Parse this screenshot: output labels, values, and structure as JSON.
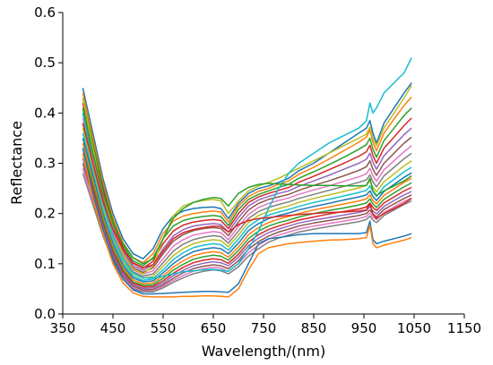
{
  "chart_data": {
    "type": "line",
    "xlabel": "Wavelength/(nm)",
    "ylabel": "Reflectance",
    "xlim": [
      350,
      1150
    ],
    "ylim": [
      0.0,
      0.6
    ],
    "x_ticks": [
      350,
      450,
      550,
      650,
      750,
      850,
      950,
      1050,
      1150
    ],
    "x_tick_labels": [
      "350",
      "450",
      "550",
      "650",
      "750",
      "850",
      "950",
      "1050",
      "1150"
    ],
    "y_ticks": [
      0.0,
      0.1,
      0.2,
      0.3,
      0.4,
      0.5,
      0.6
    ],
    "y_tick_labels": [
      "0.0",
      "0.1",
      "0.2",
      "0.3",
      "0.4",
      "0.5",
      "0.6"
    ],
    "grid": false,
    "legend": "none",
    "x": [
      390,
      410,
      430,
      450,
      470,
      490,
      510,
      530,
      550,
      570,
      590,
      610,
      630,
      650,
      665,
      680,
      700,
      720,
      740,
      760,
      780,
      800,
      820,
      850,
      880,
      910,
      940,
      955,
      962,
      968,
      975,
      990,
      1010,
      1030,
      1045
    ],
    "series_colors": [
      "#1f77b4",
      "#ff7f0e",
      "#2ca02c",
      "#d62728",
      "#9467bd",
      "#8c564b",
      "#e377c2",
      "#7f7f7f",
      "#bcbd22",
      "#17becf"
    ],
    "series": [
      {
        "values": [
          0.45,
          0.36,
          0.27,
          0.2,
          0.15,
          0.12,
          0.11,
          0.13,
          0.17,
          0.195,
          0.205,
          0.21,
          0.212,
          0.213,
          0.21,
          0.19,
          0.22,
          0.24,
          0.25,
          0.255,
          0.262,
          0.27,
          0.285,
          0.3,
          0.32,
          0.34,
          0.36,
          0.37,
          0.385,
          0.36,
          0.34,
          0.38,
          0.41,
          0.44,
          0.46
        ]
      },
      {
        "values": [
          0.44,
          0.35,
          0.262,
          0.192,
          0.142,
          0.112,
          0.102,
          0.12,
          0.16,
          0.185,
          0.195,
          0.2,
          0.203,
          0.205,
          0.203,
          0.183,
          0.215,
          0.234,
          0.244,
          0.25,
          0.258,
          0.265,
          0.278,
          0.292,
          0.308,
          0.325,
          0.342,
          0.352,
          0.366,
          0.342,
          0.325,
          0.36,
          0.388,
          0.415,
          0.432
        ]
      },
      {
        "values": [
          0.43,
          0.34,
          0.255,
          0.185,
          0.136,
          0.106,
          0.096,
          0.112,
          0.15,
          0.175,
          0.186,
          0.191,
          0.194,
          0.196,
          0.194,
          0.176,
          0.208,
          0.228,
          0.238,
          0.245,
          0.252,
          0.258,
          0.27,
          0.283,
          0.297,
          0.312,
          0.328,
          0.337,
          0.35,
          0.328,
          0.312,
          0.345,
          0.37,
          0.395,
          0.41
        ]
      },
      {
        "values": [
          0.42,
          0.33,
          0.248,
          0.18,
          0.131,
          0.101,
          0.091,
          0.105,
          0.14,
          0.165,
          0.177,
          0.183,
          0.186,
          0.188,
          0.186,
          0.17,
          0.2,
          0.222,
          0.233,
          0.24,
          0.246,
          0.252,
          0.262,
          0.274,
          0.287,
          0.3,
          0.314,
          0.323,
          0.336,
          0.315,
          0.3,
          0.33,
          0.352,
          0.375,
          0.39
        ]
      },
      {
        "values": [
          0.41,
          0.322,
          0.24,
          0.174,
          0.126,
          0.096,
          0.087,
          0.098,
          0.13,
          0.155,
          0.168,
          0.175,
          0.178,
          0.18,
          0.178,
          0.163,
          0.192,
          0.215,
          0.227,
          0.234,
          0.24,
          0.245,
          0.254,
          0.265,
          0.276,
          0.288,
          0.3,
          0.308,
          0.32,
          0.302,
          0.288,
          0.315,
          0.336,
          0.357,
          0.37
        ]
      },
      {
        "values": [
          0.4,
          0.314,
          0.233,
          0.168,
          0.121,
          0.092,
          0.083,
          0.092,
          0.12,
          0.145,
          0.158,
          0.166,
          0.17,
          0.172,
          0.17,
          0.156,
          0.183,
          0.207,
          0.22,
          0.228,
          0.233,
          0.238,
          0.246,
          0.256,
          0.265,
          0.275,
          0.286,
          0.293,
          0.305,
          0.288,
          0.276,
          0.3,
          0.32,
          0.34,
          0.352
        ]
      },
      {
        "values": [
          0.39,
          0.306,
          0.226,
          0.162,
          0.116,
          0.088,
          0.079,
          0.086,
          0.11,
          0.135,
          0.148,
          0.157,
          0.161,
          0.164,
          0.162,
          0.148,
          0.174,
          0.198,
          0.212,
          0.22,
          0.226,
          0.231,
          0.238,
          0.247,
          0.255,
          0.264,
          0.273,
          0.279,
          0.29,
          0.275,
          0.264,
          0.287,
          0.305,
          0.323,
          0.335
        ]
      },
      {
        "values": [
          0.38,
          0.298,
          0.219,
          0.156,
          0.111,
          0.084,
          0.075,
          0.08,
          0.102,
          0.125,
          0.139,
          0.148,
          0.153,
          0.156,
          0.154,
          0.141,
          0.165,
          0.19,
          0.204,
          0.212,
          0.218,
          0.223,
          0.23,
          0.238,
          0.246,
          0.254,
          0.262,
          0.267,
          0.277,
          0.263,
          0.253,
          0.275,
          0.292,
          0.309,
          0.32
        ]
      },
      {
        "values": [
          0.37,
          0.29,
          0.212,
          0.15,
          0.106,
          0.08,
          0.071,
          0.075,
          0.095,
          0.116,
          0.13,
          0.14,
          0.145,
          0.148,
          0.146,
          0.134,
          0.157,
          0.182,
          0.196,
          0.204,
          0.21,
          0.215,
          0.222,
          0.23,
          0.237,
          0.244,
          0.251,
          0.256,
          0.265,
          0.252,
          0.243,
          0.263,
          0.279,
          0.295,
          0.305
        ]
      },
      {
        "values": [
          0.36,
          0.282,
          0.205,
          0.144,
          0.101,
          0.076,
          0.067,
          0.07,
          0.088,
          0.108,
          0.122,
          0.132,
          0.137,
          0.14,
          0.138,
          0.127,
          0.149,
          0.174,
          0.188,
          0.197,
          0.203,
          0.208,
          0.214,
          0.222,
          0.228,
          0.235,
          0.242,
          0.246,
          0.255,
          0.243,
          0.234,
          0.253,
          0.268,
          0.283,
          0.292
        ]
      },
      {
        "values": [
          0.35,
          0.274,
          0.198,
          0.138,
          0.096,
          0.072,
          0.064,
          0.066,
          0.082,
          0.1,
          0.114,
          0.124,
          0.129,
          0.132,
          0.13,
          0.12,
          0.141,
          0.166,
          0.18,
          0.19,
          0.196,
          0.201,
          0.207,
          0.214,
          0.22,
          0.227,
          0.233,
          0.237,
          0.245,
          0.234,
          0.226,
          0.244,
          0.258,
          0.272,
          0.281
        ]
      },
      {
        "values": [
          0.34,
          0.266,
          0.192,
          0.133,
          0.092,
          0.068,
          0.06,
          0.062,
          0.076,
          0.093,
          0.106,
          0.116,
          0.121,
          0.124,
          0.122,
          0.113,
          0.133,
          0.158,
          0.172,
          0.182,
          0.189,
          0.194,
          0.2,
          0.207,
          0.213,
          0.219,
          0.225,
          0.229,
          0.237,
          0.226,
          0.219,
          0.236,
          0.249,
          0.262,
          0.27
        ]
      },
      {
        "values": [
          0.33,
          0.258,
          0.186,
          0.128,
          0.088,
          0.064,
          0.057,
          0.058,
          0.071,
          0.087,
          0.099,
          0.109,
          0.114,
          0.117,
          0.115,
          0.107,
          0.126,
          0.15,
          0.165,
          0.175,
          0.182,
          0.187,
          0.193,
          0.2,
          0.206,
          0.211,
          0.217,
          0.221,
          0.229,
          0.219,
          0.212,
          0.228,
          0.241,
          0.253,
          0.261
        ]
      },
      {
        "values": [
          0.32,
          0.25,
          0.18,
          0.123,
          0.084,
          0.061,
          0.054,
          0.055,
          0.066,
          0.081,
          0.093,
          0.102,
          0.107,
          0.11,
          0.108,
          0.101,
          0.119,
          0.143,
          0.158,
          0.168,
          0.175,
          0.181,
          0.187,
          0.193,
          0.199,
          0.204,
          0.209,
          0.213,
          0.221,
          0.212,
          0.206,
          0.221,
          0.233,
          0.245,
          0.252
        ]
      },
      {
        "values": [
          0.31,
          0.242,
          0.174,
          0.118,
          0.08,
          0.058,
          0.051,
          0.052,
          0.062,
          0.076,
          0.087,
          0.096,
          0.101,
          0.104,
          0.102,
          0.096,
          0.113,
          0.136,
          0.151,
          0.162,
          0.169,
          0.175,
          0.181,
          0.187,
          0.192,
          0.197,
          0.202,
          0.206,
          0.214,
          0.205,
          0.199,
          0.214,
          0.226,
          0.237,
          0.244
        ]
      },
      {
        "values": [
          0.3,
          0.234,
          0.168,
          0.113,
          0.076,
          0.055,
          0.048,
          0.049,
          0.058,
          0.071,
          0.082,
          0.09,
          0.095,
          0.098,
          0.096,
          0.09,
          0.106,
          0.129,
          0.144,
          0.155,
          0.163,
          0.169,
          0.175,
          0.181,
          0.186,
          0.191,
          0.196,
          0.2,
          0.207,
          0.199,
          0.193,
          0.208,
          0.219,
          0.23,
          0.237
        ]
      },
      {
        "values": [
          0.29,
          0.226,
          0.162,
          0.108,
          0.072,
          0.052,
          0.046,
          0.046,
          0.055,
          0.067,
          0.077,
          0.085,
          0.09,
          0.093,
          0.091,
          0.085,
          0.1,
          0.122,
          0.137,
          0.149,
          0.157,
          0.163,
          0.169,
          0.175,
          0.18,
          0.185,
          0.19,
          0.194,
          0.201,
          0.193,
          0.188,
          0.202,
          0.213,
          0.224,
          0.231
        ]
      },
      {
        "values": [
          0.28,
          0.218,
          0.156,
          0.104,
          0.069,
          0.05,
          0.044,
          0.044,
          0.052,
          0.063,
          0.072,
          0.08,
          0.085,
          0.088,
          0.086,
          0.08,
          0.094,
          0.115,
          0.13,
          0.143,
          0.151,
          0.157,
          0.163,
          0.169,
          0.174,
          0.179,
          0.184,
          0.188,
          0.195,
          0.187,
          0.182,
          0.196,
          0.207,
          0.218,
          0.225
        ]
      },
      {
        "values": [
          0.43,
          0.33,
          0.24,
          0.17,
          0.12,
          0.09,
          0.08,
          0.095,
          0.15,
          0.195,
          0.215,
          0.222,
          0.226,
          0.228,
          0.225,
          0.2,
          0.225,
          0.245,
          0.255,
          0.262,
          0.27,
          0.28,
          0.29,
          0.305,
          0.32,
          0.335,
          0.35,
          0.358,
          0.372,
          0.35,
          0.335,
          0.37,
          0.4,
          0.43,
          0.455
        ]
      },
      {
        "values": [
          0.4,
          0.3,
          0.22,
          0.155,
          0.11,
          0.082,
          0.072,
          0.072,
          0.075,
          0.08,
          0.084,
          0.086,
          0.088,
          0.089,
          0.087,
          0.085,
          0.1,
          0.13,
          0.165,
          0.21,
          0.25,
          0.28,
          0.3,
          0.32,
          0.34,
          0.355,
          0.37,
          0.385,
          0.42,
          0.4,
          0.41,
          0.44,
          0.46,
          0.48,
          0.51
        ]
      },
      {
        "values": [
          0.33,
          0.24,
          0.17,
          0.11,
          0.07,
          0.048,
          0.04,
          0.04,
          0.041,
          0.042,
          0.043,
          0.044,
          0.045,
          0.045,
          0.044,
          0.043,
          0.06,
          0.1,
          0.14,
          0.15,
          0.152,
          0.155,
          0.158,
          0.16,
          0.16,
          0.16,
          0.16,
          0.162,
          0.185,
          0.148,
          0.14,
          0.145,
          0.15,
          0.155,
          0.16
        ]
      },
      {
        "values": [
          0.32,
          0.23,
          0.16,
          0.1,
          0.062,
          0.042,
          0.035,
          0.034,
          0.034,
          0.034,
          0.035,
          0.035,
          0.036,
          0.036,
          0.035,
          0.034,
          0.05,
          0.088,
          0.12,
          0.132,
          0.136,
          0.14,
          0.142,
          0.145,
          0.147,
          0.148,
          0.15,
          0.152,
          0.176,
          0.14,
          0.132,
          0.137,
          0.142,
          0.147,
          0.152
        ]
      },
      {
        "values": [
          0.41,
          0.32,
          0.24,
          0.18,
          0.14,
          0.112,
          0.1,
          0.11,
          0.15,
          0.19,
          0.21,
          0.222,
          0.228,
          0.232,
          0.23,
          0.215,
          0.24,
          0.252,
          0.258,
          0.26,
          0.259,
          0.258,
          0.257,
          0.256,
          0.256,
          0.255,
          0.255,
          0.256,
          0.27,
          0.245,
          0.236,
          0.245,
          0.255,
          0.265,
          0.275
        ]
      },
      {
        "values": [
          0.38,
          0.3,
          0.225,
          0.168,
          0.128,
          0.102,
          0.092,
          0.098,
          0.125,
          0.15,
          0.162,
          0.168,
          0.172,
          0.175,
          0.174,
          0.163,
          0.178,
          0.186,
          0.19,
          0.192,
          0.194,
          0.196,
          0.198,
          0.2,
          0.202,
          0.203,
          0.205,
          0.207,
          0.22,
          0.198,
          0.19,
          0.2,
          0.21,
          0.22,
          0.23
        ]
      }
    ]
  }
}
